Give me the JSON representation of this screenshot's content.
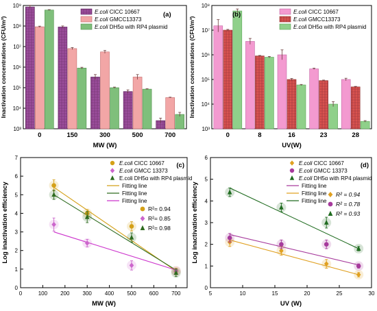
{
  "chart_data": [
    {
      "panel": "(a)",
      "type": "bar",
      "title": "",
      "xlabel": "MW (W)",
      "ylabel": "Inactivation concentrations (CFU/m³)",
      "yscale": "log",
      "ylim": [
        1000,
        1000000000
      ],
      "yticks": [
        "10³",
        "10⁴",
        "10⁵",
        "10⁶",
        "10⁷",
        "10⁸",
        "10⁹"
      ],
      "categories": [
        "0",
        "150",
        "300",
        "500",
        "700"
      ],
      "legend_position": "top-right",
      "series": [
        {
          "name_italic": "E.coli",
          "name_rest": " CICC 10667",
          "color": "#9b4e9c",
          "values": [
            850000000,
            90000000,
            330000,
            65000,
            2500
          ],
          "err": [
            0.08,
            0.05,
            0.12,
            0.08,
            0.12
          ]
        },
        {
          "name_italic": "E.coli",
          "name_rest": " GMCC13373",
          "color": "#f2a6a6",
          "values": [
            92000000,
            8000000,
            5500000,
            330000,
            33000
          ],
          "err": [
            0.03,
            0.05,
            0.07,
            0.12,
            0.02
          ]
        },
        {
          "name_italic": "E.coli",
          "name_rest": " DH5α with RP4 plasmid",
          "color": "#7fbf7b",
          "values": [
            600000000,
            900000,
            100000,
            85000,
            5000
          ],
          "err": [
            0.02,
            0.04,
            0.03,
            0.02,
            0.1
          ]
        }
      ]
    },
    {
      "panel": "(b)",
      "type": "bar",
      "title": "",
      "xlabel": "UV(W)",
      "ylabel": "Inactivation concentrations (CFU/m³)",
      "yscale": "log",
      "ylim": [
        1000,
        100000000
      ],
      "yticks": [
        "10³",
        "10⁴",
        "10⁵",
        "10⁶",
        "10⁷",
        "10⁸"
      ],
      "categories": [
        "0",
        "8",
        "16",
        "23",
        "28"
      ],
      "legend_position": "top-right",
      "series": [
        {
          "name_italic": "E.coli",
          "name_rest": " CICC 10667",
          "color": "#f39ad0",
          "values": [
            15000000,
            3500000,
            1000000,
            270000,
            100000
          ],
          "err": [
            0.25,
            0.12,
            0.2,
            0.03,
            0.05
          ]
        },
        {
          "name_italic": "E.coli",
          "name_rest": " GMCC13373",
          "color": "#d9534f",
          "values": [
            10000000,
            900000,
            100000,
            90000,
            50000
          ],
          "err": [
            0.03,
            0.02,
            0.04,
            0.02,
            0.02
          ]
        },
        {
          "name_italic": "E.coli",
          "name_rest": " DH5α with RP4 plasmid",
          "color": "#8fd08a",
          "values": [
            60000000,
            800000,
            60000,
            10000,
            2000
          ],
          "err": [
            0.08,
            0.03,
            0.02,
            0.1,
            0.03
          ]
        }
      ]
    },
    {
      "panel": "(c)",
      "type": "scatter",
      "title": "",
      "xlabel": "MW (W)",
      "ylabel": "Log inactivation efficiency",
      "xlim": [
        0,
        750
      ],
      "ylim": [
        0,
        7
      ],
      "xticks": [
        0,
        100,
        200,
        300,
        400,
        500,
        600,
        700
      ],
      "yticks": [
        0,
        1,
        2,
        3,
        4,
        5,
        6,
        7
      ],
      "legend_position": "top-right",
      "series": [
        {
          "name_italic": "E.coli",
          "name_rest": " CICC 10667",
          "marker": "circle",
          "color": "#d4a017",
          "x": [
            150,
            300,
            500,
            700
          ],
          "y": [
            5.5,
            4.0,
            3.3,
            0.9
          ],
          "err": [
            0.3,
            0.2,
            0.25,
            0.15
          ]
        },
        {
          "name_italic": "E.coli",
          "name_rest": " GMCC 13373",
          "marker": "diamond",
          "color": "#cc66cc",
          "x": [
            150,
            300,
            500,
            700
          ],
          "y": [
            3.4,
            2.4,
            1.2,
            0.9
          ],
          "err": [
            0.35,
            0.2,
            0.25,
            0.1
          ]
        },
        {
          "name_italic": "",
          "name_rest": "E.coli DH5α with RP4 plasmid",
          "marker": "triangle",
          "color": "#2e6b1f",
          "x": [
            150,
            300,
            500,
            700
          ],
          "y": [
            5.0,
            3.8,
            2.7,
            0.8
          ],
          "err": [
            0.25,
            0.3,
            0.25,
            0.2
          ]
        }
      ],
      "fit_lines": [
        {
          "name": "Fitting line",
          "color": "#d4a017",
          "x": [
            150,
            700
          ],
          "y": [
            5.4,
            0.9
          ]
        },
        {
          "name": "Fitting line",
          "color": "#2e6b1f",
          "x": [
            150,
            700
          ],
          "y": [
            5.0,
            0.95
          ]
        },
        {
          "name": "Fitting line",
          "color": "#cc33cc",
          "x": [
            150,
            700
          ],
          "y": [
            3.0,
            0.95
          ]
        }
      ],
      "r2_labels": [
        {
          "prefix": "R²= ",
          "value": "0.94",
          "marker": "circle",
          "color": "#d4a017"
        },
        {
          "prefix": "R²= ",
          "value": "0.85",
          "marker": "diamond",
          "color": "#cc66cc"
        },
        {
          "prefix": "R²= ",
          "value": "0.98",
          "marker": "triangle",
          "color": "#2e6b1f"
        }
      ]
    },
    {
      "panel": "(d)",
      "type": "scatter",
      "title": "",
      "xlabel": "UV (W)",
      "ylabel": "Log inactivation efficiency",
      "xlim": [
        5,
        30
      ],
      "ylim": [
        0,
        6
      ],
      "xticks": [
        5,
        10,
        15,
        20,
        25,
        30
      ],
      "yticks": [
        0,
        1,
        2,
        3,
        4,
        5,
        6
      ],
      "legend_position": "top-right",
      "series": [
        {
          "name_italic": "E.coli",
          "name_rest": " CICC 10667",
          "marker": "diamond",
          "color": "#e0a020",
          "x": [
            8,
            16,
            23,
            28
          ],
          "y": [
            2.1,
            1.7,
            1.1,
            0.6
          ],
          "err": [
            0.2,
            0.2,
            0.2,
            0.1
          ]
        },
        {
          "name_italic": "E.coli",
          "name_rest": " GMCC 13373",
          "marker": "circle",
          "color": "#a63a9c",
          "x": [
            8,
            16,
            23,
            28
          ],
          "y": [
            2.3,
            2.0,
            2.0,
            1.0
          ],
          "err": [
            0.2,
            0.2,
            0.2,
            0.1
          ]
        },
        {
          "name_italic": "E.coli",
          "name_rest": " DH5α with RP4 plasmid",
          "marker": "triangle",
          "color": "#1f6b1f",
          "x": [
            8,
            16,
            23,
            28
          ],
          "y": [
            4.4,
            3.7,
            3.0,
            1.8
          ],
          "err": [
            0.2,
            0.2,
            0.25,
            0.1
          ]
        }
      ],
      "fit_lines": [
        {
          "name": "Fitting line",
          "color": "#a63a9c",
          "x": [
            8,
            28
          ],
          "y": [
            2.45,
            1.05
          ]
        },
        {
          "name": "Fitting line",
          "color": "#e0a020",
          "x": [
            8,
            28
          ],
          "y": [
            2.2,
            0.6
          ]
        },
        {
          "name": "Fitting line",
          "color": "#1f6b1f",
          "x": [
            8,
            28
          ],
          "y": [
            4.6,
            1.8
          ]
        }
      ],
      "r2_labels": [
        {
          "prefix": "R² = ",
          "value": "0.94",
          "marker": "diamond",
          "color": "#e0a020"
        },
        {
          "prefix": "R² = ",
          "value": "0.78",
          "marker": "circle",
          "color": "#a63a9c"
        },
        {
          "prefix": "R² = ",
          "value": "0.93",
          "marker": "triangle",
          "color": "#1f6b1f"
        }
      ]
    }
  ]
}
